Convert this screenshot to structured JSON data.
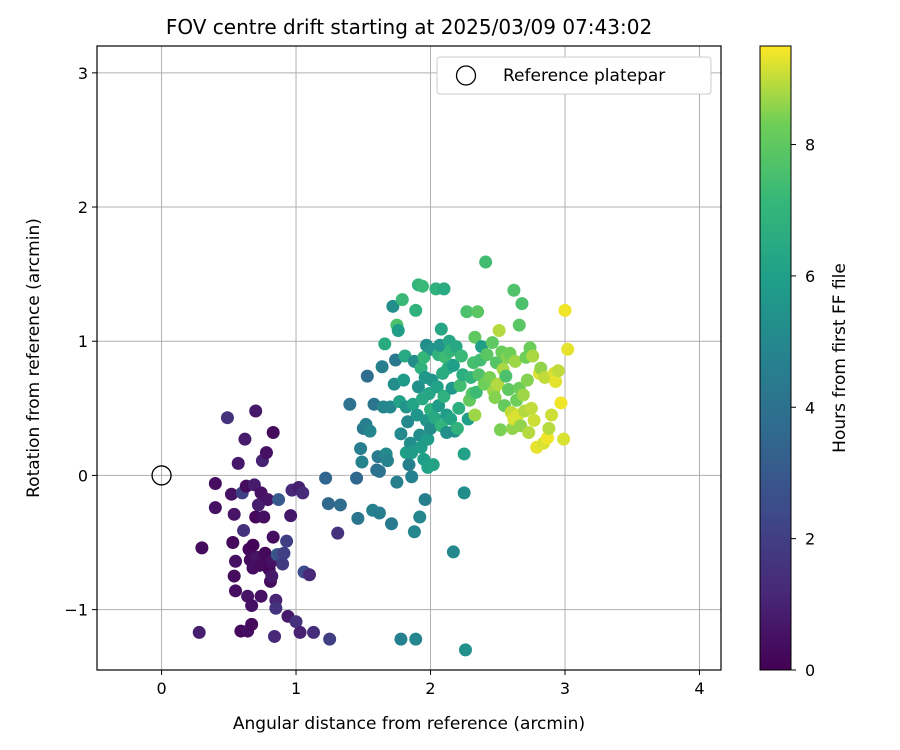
{
  "chart_data": {
    "type": "scatter",
    "title": "FOV centre drift starting at 2025/03/09 07:43:02",
    "xlabel": "Angular distance from reference (arcmin)",
    "ylabel": "Rotation from reference (arcmin)",
    "xlim": [
      -0.48,
      4.16
    ],
    "ylim": [
      -1.45,
      3.2
    ],
    "xticks": [
      0,
      1,
      2,
      3,
      4
    ],
    "yticks": [
      -1,
      0,
      1,
      2,
      3
    ],
    "xtick_labels": [
      "0",
      "1",
      "2",
      "3",
      "4"
    ],
    "ytick_labels": [
      "−1",
      "0",
      "1",
      "2",
      "3"
    ],
    "grid": true,
    "legend": {
      "placement": "top-right",
      "entries": [
        "Reference platepar"
      ]
    },
    "reference_point": {
      "x": 0,
      "y": 0,
      "label": "Reference platepar"
    },
    "colorbar": {
      "label": "Hours from first FF file",
      "colormap": "viridis",
      "range": [
        0,
        9.5
      ],
      "ticks": [
        0,
        2,
        4,
        6,
        8
      ],
      "tick_labels": [
        "0",
        "2",
        "4",
        "6",
        "8"
      ]
    },
    "points": [
      [
        0.28,
        -1.17,
        0.9
      ],
      [
        0.3,
        -0.54,
        0.3
      ],
      [
        0.4,
        -0.06,
        0.4
      ],
      [
        0.4,
        -0.24,
        0.5
      ],
      [
        0.49,
        0.43,
        1.5
      ],
      [
        0.52,
        -0.14,
        0.5
      ],
      [
        0.53,
        -0.5,
        0.2
      ],
      [
        0.54,
        -0.75,
        0.3
      ],
      [
        0.55,
        -0.86,
        0.4
      ],
      [
        0.55,
        -0.64,
        0.5
      ],
      [
        0.54,
        -0.29,
        0.6
      ],
      [
        0.57,
        0.09,
        0.7
      ],
      [
        0.59,
        -1.16,
        0.2
      ],
      [
        0.6,
        -0.13,
        2.0
      ],
      [
        0.61,
        -0.41,
        1.5
      ],
      [
        0.62,
        0.27,
        0.8
      ],
      [
        0.63,
        -0.08,
        0.3
      ],
      [
        0.64,
        -0.9,
        0.6
      ],
      [
        0.64,
        -1.16,
        0.4
      ],
      [
        0.65,
        -0.55,
        0.2
      ],
      [
        0.66,
        -0.63,
        0.3
      ],
      [
        0.67,
        -0.97,
        0.5
      ],
      [
        0.67,
        -1.11,
        0.3
      ],
      [
        0.68,
        -0.52,
        0.1
      ],
      [
        0.68,
        -0.69,
        0.4
      ],
      [
        0.69,
        -0.07,
        0.8
      ],
      [
        0.7,
        -0.31,
        0.2
      ],
      [
        0.7,
        0.48,
        0.7
      ],
      [
        0.71,
        -0.61,
        0.6
      ],
      [
        0.72,
        -0.22,
        0.9
      ],
      [
        0.73,
        -0.67,
        0.3
      ],
      [
        0.74,
        -0.9,
        0.5
      ],
      [
        0.74,
        -0.13,
        0.5
      ],
      [
        0.75,
        0.11,
        1.0
      ],
      [
        0.76,
        -0.31,
        0.4
      ],
      [
        0.77,
        -0.58,
        0.2
      ],
      [
        0.78,
        -0.66,
        0.3
      ],
      [
        0.78,
        0.17,
        0.5
      ],
      [
        0.79,
        -0.18,
        0.6
      ],
      [
        0.8,
        -0.7,
        0.2
      ],
      [
        0.81,
        -0.79,
        0.3
      ],
      [
        0.82,
        -0.64,
        0.5
      ],
      [
        0.82,
        -0.75,
        0.7
      ],
      [
        0.83,
        -0.46,
        0.4
      ],
      [
        0.83,
        0.32,
        0.3
      ],
      [
        0.84,
        -1.2,
        1.2
      ],
      [
        0.85,
        -0.93,
        1.1
      ],
      [
        0.85,
        -0.99,
        1.6
      ],
      [
        0.86,
        -0.59,
        3.0
      ],
      [
        0.87,
        -0.18,
        3.0
      ],
      [
        0.88,
        -0.59,
        2.6
      ],
      [
        0.9,
        -0.66,
        1.8
      ],
      [
        0.91,
        -0.58,
        2.0
      ],
      [
        0.93,
        -0.49,
        2.0
      ],
      [
        0.94,
        -1.05,
        0.8
      ],
      [
        0.96,
        -0.3,
        0.7
      ],
      [
        0.97,
        -0.11,
        1.2
      ],
      [
        1.0,
        -1.09,
        1.5
      ],
      [
        1.02,
        -0.09,
        0.9
      ],
      [
        1.03,
        -1.17,
        1.0
      ],
      [
        1.05,
        -0.13,
        1.3
      ],
      [
        1.06,
        -0.72,
        2.5
      ],
      [
        1.1,
        -0.74,
        1.2
      ],
      [
        1.13,
        -1.17,
        1.4
      ],
      [
        1.22,
        -0.02,
        3.5
      ],
      [
        1.24,
        -0.21,
        3.6
      ],
      [
        1.25,
        -1.22,
        2.0
      ],
      [
        1.31,
        -0.43,
        1.6
      ],
      [
        1.33,
        -0.22,
        3.8
      ],
      [
        1.4,
        0.53,
        4.0
      ],
      [
        1.45,
        -0.02,
        3.6
      ],
      [
        1.46,
        -0.32,
        4.2
      ],
      [
        1.48,
        0.2,
        4.5
      ],
      [
        1.49,
        0.1,
        4.8
      ],
      [
        1.5,
        0.35,
        4.3
      ],
      [
        1.52,
        0.38,
        4.6
      ],
      [
        1.53,
        0.74,
        3.8
      ],
      [
        1.55,
        0.33,
        4.9
      ],
      [
        1.57,
        -0.26,
        4.7
      ],
      [
        1.58,
        0.53,
        4.2
      ],
      [
        1.6,
        0.04,
        3.9
      ],
      [
        1.61,
        0.14,
        4.4
      ],
      [
        1.62,
        0.03,
        4.0
      ],
      [
        1.62,
        -0.28,
        4.5
      ],
      [
        1.64,
        0.81,
        4.6
      ],
      [
        1.65,
        0.51,
        4.9
      ],
      [
        1.66,
        0.98,
        6.5
      ],
      [
        1.67,
        0.16,
        5.1
      ],
      [
        1.68,
        0.11,
        4.8
      ],
      [
        1.7,
        0.51,
        5.0
      ],
      [
        1.71,
        -0.36,
        4.4
      ],
      [
        1.72,
        1.26,
        5.3
      ],
      [
        1.73,
        0.68,
        5.2
      ],
      [
        1.74,
        0.86,
        4.3
      ],
      [
        1.75,
        -0.05,
        4.6
      ],
      [
        1.75,
        1.12,
        7.6
      ],
      [
        1.76,
        1.08,
        5.9
      ],
      [
        1.77,
        0.55,
        6.1
      ],
      [
        1.78,
        0.31,
        5.1
      ],
      [
        1.78,
        -1.22,
        4.7
      ],
      [
        1.79,
        1.31,
        7.2
      ],
      [
        1.8,
        0.71,
        5.8
      ],
      [
        1.81,
        0.89,
        6.4
      ],
      [
        1.82,
        0.17,
        6.0
      ],
      [
        1.82,
        0.51,
        5.5
      ],
      [
        1.83,
        0.4,
        5.0
      ],
      [
        1.84,
        0.08,
        4.6
      ],
      [
        1.85,
        0.24,
        5.3
      ],
      [
        1.86,
        0.17,
        5.8
      ],
      [
        1.86,
        -0.01,
        4.7
      ],
      [
        1.87,
        0.53,
        6.2
      ],
      [
        1.88,
        0.85,
        5.2
      ],
      [
        1.88,
        -0.42,
        4.9
      ],
      [
        1.89,
        1.23,
        6.9
      ],
      [
        1.89,
        -1.22,
        4.9
      ],
      [
        1.9,
        0.45,
        5.6
      ],
      [
        1.91,
        1.42,
        7.0
      ],
      [
        1.91,
        0.66,
        5.4
      ],
      [
        1.92,
        0.3,
        5.3
      ],
      [
        1.92,
        -0.31,
        4.9
      ],
      [
        1.93,
        0.21,
        5.9
      ],
      [
        1.93,
        0.8,
        6.8
      ],
      [
        1.94,
        0.57,
        6.4
      ],
      [
        1.94,
        1.41,
        7.2
      ],
      [
        1.95,
        0.12,
        6.0
      ],
      [
        1.95,
        0.88,
        7.1
      ],
      [
        1.96,
        0.73,
        5.7
      ],
      [
        1.96,
        -0.18,
        4.6
      ],
      [
        1.97,
        0.41,
        5.6
      ],
      [
        1.97,
        0.97,
        5.2
      ],
      [
        1.98,
        0.06,
        6.1
      ],
      [
        1.98,
        0.27,
        5.9
      ],
      [
        1.99,
        0.61,
        6.3
      ],
      [
        2.0,
        0.35,
        5.2
      ],
      [
        2.0,
        0.49,
        6.7
      ],
      [
        2.01,
        0.94,
        5.5
      ],
      [
        2.01,
        0.71,
        5.6
      ],
      [
        2.02,
        0.08,
        6.2
      ],
      [
        2.03,
        0.43,
        6.4
      ],
      [
        2.04,
        1.39,
        6.8
      ],
      [
        2.05,
        0.66,
        6.1
      ],
      [
        2.06,
        0.9,
        6.9
      ],
      [
        2.06,
        0.52,
        5.8
      ],
      [
        2.07,
        0.97,
        5.5
      ],
      [
        2.08,
        1.09,
        6.3
      ],
      [
        2.08,
        0.37,
        7.0
      ],
      [
        2.09,
        0.76,
        6.5
      ],
      [
        2.1,
        0.59,
        6.8
      ],
      [
        2.1,
        1.39,
        6.5
      ],
      [
        2.11,
        0.88,
        7.3
      ],
      [
        2.12,
        0.45,
        5.9
      ],
      [
        2.12,
        0.32,
        5.4
      ],
      [
        2.13,
        0.8,
        6.6
      ],
      [
        2.14,
        1.0,
        6.3
      ],
      [
        2.15,
        0.93,
        7.0
      ],
      [
        2.15,
        0.42,
        6.2
      ],
      [
        2.16,
        0.65,
        5.7
      ],
      [
        2.17,
        0.82,
        6.0
      ],
      [
        2.17,
        -0.57,
        5.0
      ],
      [
        2.18,
        0.33,
        5.2
      ],
      [
        2.19,
        0.96,
        6.4
      ],
      [
        2.2,
        0.35,
        6.9
      ],
      [
        2.21,
        0.5,
        6.7
      ],
      [
        2.22,
        0.67,
        7.4
      ],
      [
        2.23,
        0.89,
        7.2
      ],
      [
        2.24,
        0.75,
        6.7
      ],
      [
        2.25,
        0.16,
        6.1
      ],
      [
        2.25,
        -0.13,
        5.2
      ],
      [
        2.26,
        -1.3,
        5.4
      ],
      [
        2.27,
        1.22,
        7.6
      ],
      [
        2.28,
        0.42,
        6.0
      ],
      [
        2.29,
        0.56,
        8.1
      ],
      [
        2.3,
        0.73,
        7.0
      ],
      [
        2.31,
        0.61,
        7.8
      ],
      [
        2.32,
        0.84,
        7.5
      ],
      [
        2.33,
        1.03,
        8.0
      ],
      [
        2.33,
        0.45,
        8.7
      ],
      [
        2.34,
        0.62,
        7.3
      ],
      [
        2.35,
        1.22,
        7.9
      ],
      [
        2.36,
        0.75,
        7.7
      ],
      [
        2.37,
        0.86,
        7.4
      ],
      [
        2.38,
        0.96,
        6.0
      ],
      [
        2.4,
        0.68,
        8.3
      ],
      [
        2.41,
        1.59,
        7.4
      ],
      [
        2.42,
        0.9,
        7.9
      ],
      [
        2.44,
        0.73,
        8.4
      ],
      [
        2.46,
        0.99,
        8.0
      ],
      [
        2.47,
        0.63,
        8.7
      ],
      [
        2.48,
        0.58,
        8.5
      ],
      [
        2.49,
        0.84,
        7.8
      ],
      [
        2.5,
        0.68,
        8.9
      ],
      [
        2.51,
        1.08,
        8.9
      ],
      [
        2.52,
        0.34,
        8.4
      ],
      [
        2.53,
        0.92,
        8.2
      ],
      [
        2.54,
        0.79,
        8.8
      ],
      [
        2.55,
        0.52,
        8.1
      ],
      [
        2.56,
        0.74,
        7.6
      ],
      [
        2.57,
        0.88,
        8.5
      ],
      [
        2.58,
        0.64,
        8.0
      ],
      [
        2.59,
        0.91,
        8.3
      ],
      [
        2.6,
        0.47,
        9.0
      ],
      [
        2.61,
        0.35,
        8.6
      ],
      [
        2.62,
        0.42,
        9.2
      ],
      [
        2.62,
        1.38,
        7.7
      ],
      [
        2.63,
        0.85,
        8.7
      ],
      [
        2.64,
        0.56,
        8.3
      ],
      [
        2.65,
        0.45,
        9.2
      ],
      [
        2.66,
        1.12,
        7.9
      ],
      [
        2.66,
        0.65,
        8.2
      ],
      [
        2.67,
        0.37,
        8.6
      ],
      [
        2.68,
        1.28,
        7.6
      ],
      [
        2.69,
        0.6,
        8.7
      ],
      [
        2.7,
        0.48,
        8.9
      ],
      [
        2.71,
        0.88,
        8.3
      ],
      [
        2.72,
        0.71,
        8.5
      ],
      [
        2.73,
        0.32,
        8.9
      ],
      [
        2.74,
        0.95,
        8.2
      ],
      [
        2.75,
        0.5,
        9.0
      ],
      [
        2.76,
        0.89,
        8.8
      ],
      [
        2.77,
        0.41,
        9.1
      ],
      [
        2.79,
        0.21,
        9.3
      ],
      [
        2.81,
        0.76,
        9.2
      ],
      [
        2.82,
        0.8,
        8.6
      ],
      [
        2.84,
        0.24,
        9.2
      ],
      [
        2.85,
        0.73,
        9.0
      ],
      [
        2.87,
        0.28,
        9.4
      ],
      [
        2.88,
        0.35,
        8.9
      ],
      [
        2.9,
        0.45,
        9.1
      ],
      [
        2.92,
        0.76,
        9.2
      ],
      [
        2.93,
        0.7,
        9.3
      ],
      [
        2.95,
        0.78,
        9.0
      ],
      [
        2.97,
        0.54,
        9.4
      ],
      [
        2.99,
        0.27,
        9.2
      ],
      [
        3.0,
        1.23,
        9.4
      ],
      [
        3.02,
        0.94,
        9.3
      ]
    ]
  }
}
